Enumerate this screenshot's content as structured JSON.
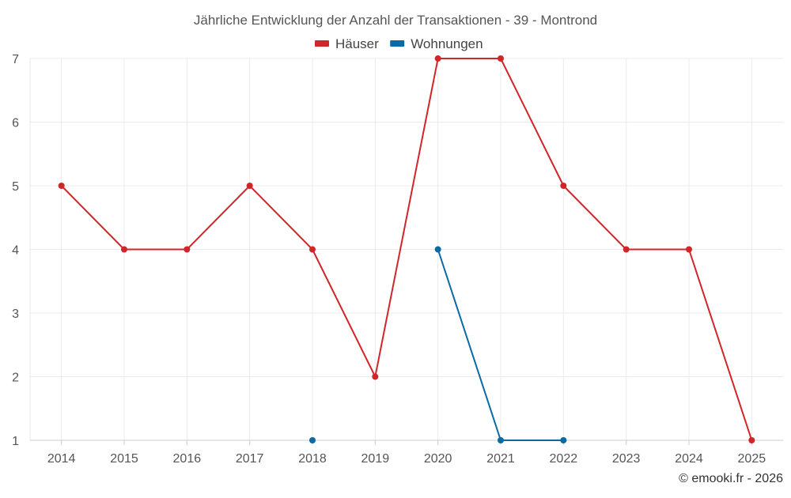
{
  "chart_data": {
    "type": "line",
    "title": "Jährliche Entwicklung der Anzahl der Transaktionen - 39 - Montrond",
    "x": [
      "2014",
      "2015",
      "2016",
      "2017",
      "2018",
      "2019",
      "2020",
      "2021",
      "2022",
      "2023",
      "2024",
      "2025"
    ],
    "ylim": [
      1,
      7
    ],
    "yticks": [
      1,
      2,
      3,
      4,
      5,
      6,
      7
    ],
    "grid": true,
    "legend_position": "top-center",
    "series": [
      {
        "name": "Häuser",
        "color": "#d0262a",
        "values": [
          5,
          4,
          4,
          5,
          4,
          2,
          7,
          7,
          5,
          4,
          4,
          1
        ]
      },
      {
        "name": "Wohnungen",
        "color": "#0b69a3",
        "values": [
          null,
          null,
          null,
          null,
          1,
          null,
          4,
          1,
          1,
          null,
          null,
          null
        ]
      }
    ]
  },
  "footer": {
    "credit": "© emooki.fr - 2026"
  }
}
